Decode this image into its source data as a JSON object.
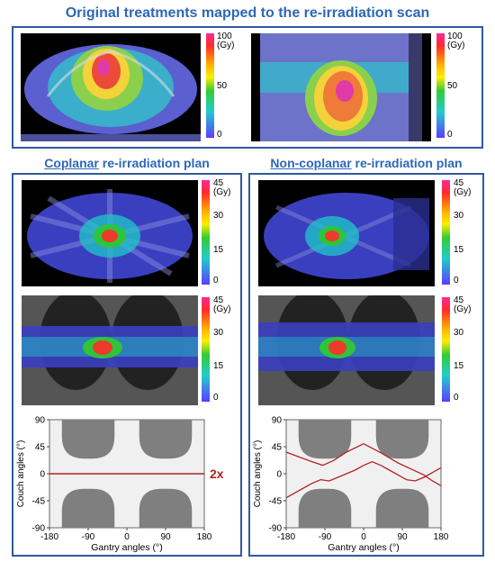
{
  "title": "Original treatments mapped to the re-irradiation scan",
  "coplanar_heading": {
    "emph": "Coplanar",
    "rest": " re-irradiation plan"
  },
  "noncoplanar_heading": {
    "emph": "Non-coplanar",
    "rest": " re-irradiation plan"
  },
  "colorbars": {
    "original": {
      "ticks": [
        "100",
        "50",
        "0"
      ],
      "unit": "(Gy)"
    },
    "reirradiation": {
      "ticks": [
        "45",
        "30",
        "15",
        "0"
      ],
      "unit": "(Gy)"
    }
  },
  "colors": {
    "accent": "#2e67b8",
    "trajectory": "#b22222",
    "blocked": "#7f7f7f"
  },
  "chart_data": [
    {
      "type": "line",
      "panel": "coplanar",
      "xlabel": "Gantry angles (°)",
      "ylabel": "Couch angles (°)",
      "xlim": [
        -180,
        180
      ],
      "ylim": [
        -90,
        90
      ],
      "xticks": [
        "-180",
        "-90",
        "0",
        "90",
        "180"
      ],
      "yticks": [
        "90",
        "45",
        "0",
        "-45",
        "-90"
      ],
      "annotation": "2x",
      "series": [
        {
          "x": [
            -180,
            180
          ],
          "y": [
            0,
            0
          ]
        }
      ]
    },
    {
      "type": "line",
      "panel": "non-coplanar",
      "xlabel": "Gantry angles (°)",
      "ylabel": "Couch angles (°)",
      "xlim": [
        -180,
        180
      ],
      "ylim": [
        -90,
        90
      ],
      "xticks": [
        "-180",
        "-90",
        "0",
        "90",
        "180"
      ],
      "yticks": [
        "90",
        "45",
        "0",
        "-45",
        "-90"
      ],
      "series": [
        {
          "x": [
            -180,
            -150,
            -120,
            -95,
            -70,
            -40,
            0,
            40,
            80,
            110,
            140,
            160,
            180
          ],
          "y": [
            36,
            28,
            20,
            14,
            22,
            36,
            50,
            35,
            18,
            8,
            -2,
            -12,
            -20
          ]
        },
        {
          "x": [
            -180,
            -160,
            -140,
            -120,
            -100,
            -80,
            -60,
            -40,
            -20,
            0,
            20,
            40,
            60,
            80,
            100,
            120,
            140,
            160,
            180
          ],
          "y": [
            -40,
            -32,
            -24,
            -16,
            -10,
            -12,
            -6,
            0,
            6,
            14,
            20,
            14,
            6,
            -2,
            -10,
            -12,
            -6,
            2,
            10
          ]
        }
      ]
    }
  ]
}
